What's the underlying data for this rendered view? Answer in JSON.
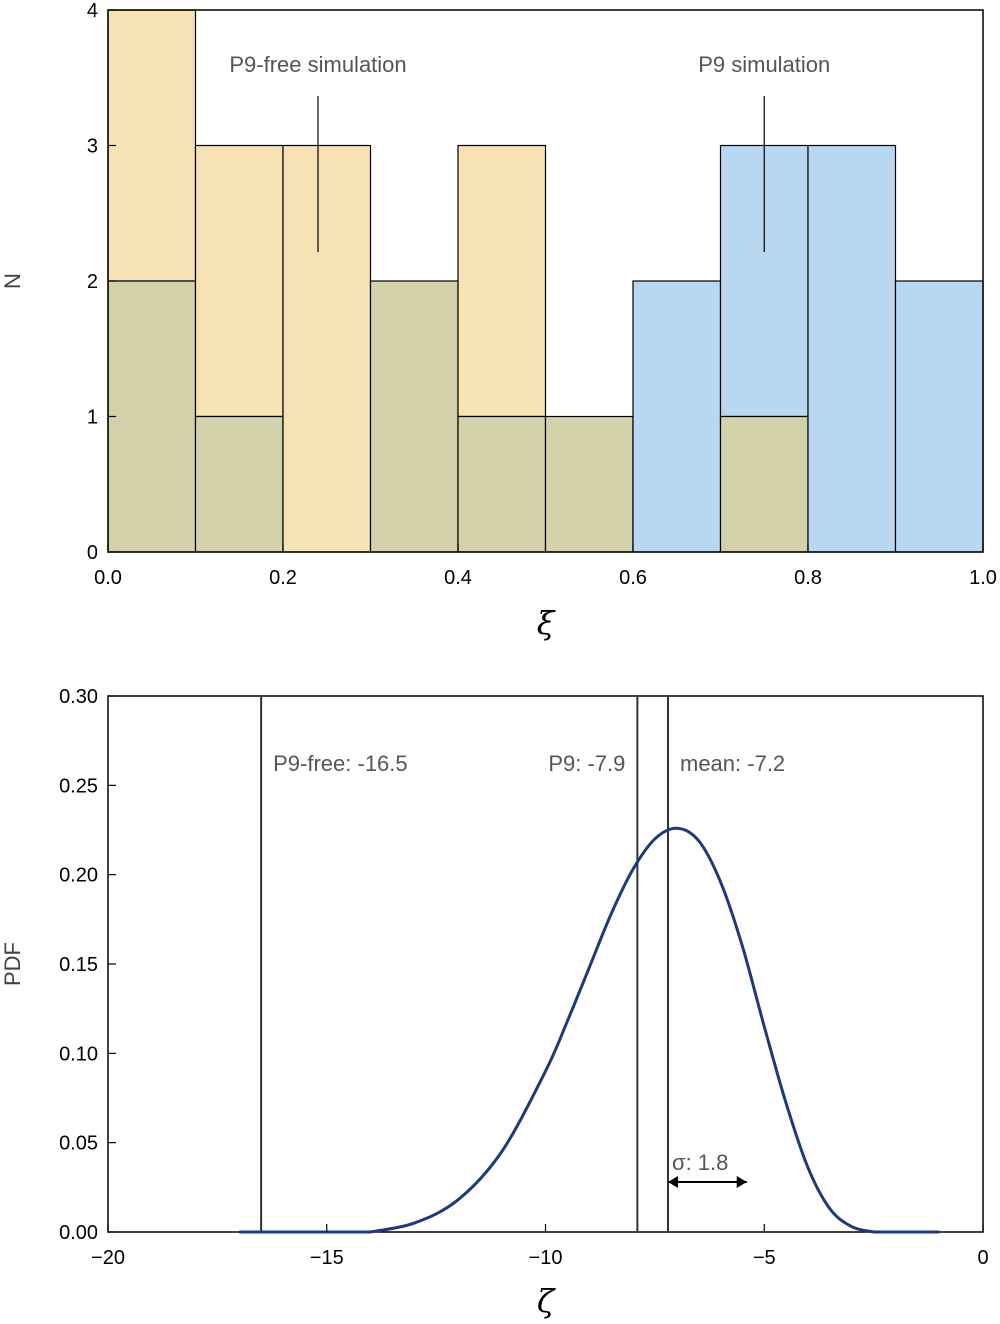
{
  "colors": {
    "p9_free_bar": "#f7e2b4",
    "p9_bar": "#b8d8f2",
    "overlap_bar": "#d3d1a9",
    "curve": "#1f3a7a",
    "frame": "#000000"
  },
  "chart_data": [
    {
      "type": "bar",
      "subtype": "overlapping-histogram",
      "xlabel": "ξ",
      "ylabel": "N",
      "xlim": [
        0.0,
        1.0
      ],
      "ylim": [
        0,
        4
      ],
      "xticks": [
        "0.0",
        "0.2",
        "0.4",
        "0.6",
        "0.8",
        "1.0"
      ],
      "yticks": [
        "0",
        "1",
        "2",
        "3",
        "4"
      ],
      "bins": [
        [
          0.0,
          0.1
        ],
        [
          0.1,
          0.2
        ],
        [
          0.2,
          0.3
        ],
        [
          0.3,
          0.4
        ],
        [
          0.4,
          0.5
        ],
        [
          0.5,
          0.6
        ],
        [
          0.6,
          0.7
        ],
        [
          0.7,
          0.8
        ],
        [
          0.8,
          0.9
        ],
        [
          0.9,
          1.0
        ]
      ],
      "series": [
        {
          "name": "P9-free simulation",
          "values": [
            4,
            3,
            3,
            2,
            3,
            1,
            0,
            1,
            0,
            0
          ]
        },
        {
          "name": "P9 simulation",
          "values": [
            2,
            1,
            0,
            2,
            1,
            1,
            2,
            3,
            3,
            2
          ]
        }
      ],
      "annotations": [
        {
          "text": "P9-free simulation",
          "x": 0.24
        },
        {
          "text": "P9 simulation",
          "x": 0.75
        }
      ],
      "grid": false
    },
    {
      "type": "line",
      "xlabel": "ζ",
      "ylabel": "PDF",
      "xlim": [
        -20,
        0
      ],
      "ylim": [
        0,
        0.3
      ],
      "xticks": [
        -20,
        -15,
        -10,
        -5,
        0
      ],
      "xtick_labels": [
        "−20",
        "−15",
        "−10",
        "−5",
        "0"
      ],
      "yticks": [
        "0.00",
        "0.05",
        "0.10",
        "0.15",
        "0.20",
        "0.25",
        "0.30"
      ],
      "series": [
        {
          "x": [
            -14,
            -13,
            -12,
            -11,
            -10,
            -9.5,
            -9,
            -8.5,
            -8,
            -7.5,
            -7,
            -6.5,
            -6,
            -5.5,
            -5,
            -4.5,
            -4,
            -3.5,
            -3,
            -2.5
          ],
          "values": [
            0.0,
            0.005,
            0.018,
            0.045,
            0.09,
            0.118,
            0.148,
            0.178,
            0.203,
            0.22,
            0.226,
            0.219,
            0.196,
            0.16,
            0.115,
            0.072,
            0.036,
            0.013,
            0.003,
            0.0
          ]
        }
      ],
      "vlines": [
        {
          "x": -16.5,
          "label": "P9-free: -16.5"
        },
        {
          "x": -7.9,
          "label": "P9: -7.9"
        },
        {
          "x": -7.2,
          "label": "mean: -7.2"
        }
      ],
      "sigma": {
        "label": "σ: 1.8",
        "from": -7.2,
        "to": -5.4,
        "y": 0.028
      },
      "grid": false
    }
  ]
}
